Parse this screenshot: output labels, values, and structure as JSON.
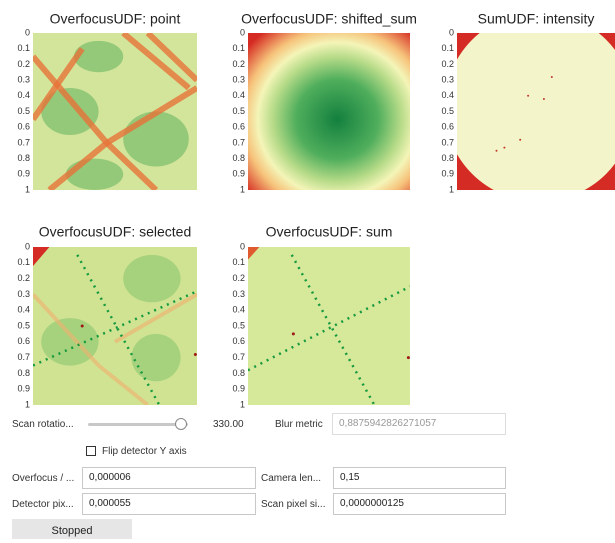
{
  "panels": [
    {
      "title": "OverfocusUDF: point",
      "yticks": [
        "0",
        "0.1",
        "0.2",
        "0.3",
        "0.4",
        "0.5",
        "0.6",
        "0.7",
        "0.8",
        "0.9",
        "1"
      ]
    },
    {
      "title": "OverfocusUDF: shifted_sum",
      "yticks": [
        "0",
        "0.1",
        "0.2",
        "0.3",
        "0.4",
        "0.5",
        "0.6",
        "0.7",
        "0.8",
        "0.9",
        "1"
      ]
    },
    {
      "title": "SumUDF: intensity",
      "yticks": [
        "0",
        "0.1",
        "0.2",
        "0.3",
        "0.4",
        "0.5",
        "0.6",
        "0.7",
        "0.8",
        "0.9",
        "1"
      ]
    },
    {
      "title": "OverfocusUDF: selected",
      "yticks": [
        "0",
        "0.1",
        "0.2",
        "0.3",
        "0.4",
        "0.5",
        "0.6",
        "0.7",
        "0.8",
        "0.9",
        "1"
      ]
    },
    {
      "title": "OverfocusUDF: sum",
      "yticks": [
        "0",
        "0.1",
        "0.2",
        "0.3",
        "0.4",
        "0.5",
        "0.6",
        "0.7",
        "0.8",
        "0.9",
        "1"
      ]
    }
  ],
  "controls": {
    "scan_rotation": {
      "label": "Scan rotatio...",
      "value": "330.00"
    },
    "blur_metric": {
      "label": "Blur metric",
      "value": "0,8875942826271057"
    },
    "flip": {
      "label": "Flip detector Y axis"
    },
    "overfocus": {
      "label": "Overfocus / ...",
      "value": "0,000006"
    },
    "camera_length": {
      "label": "Camera len...",
      "value": "0,15"
    },
    "detector_pixel": {
      "label": "Detector pix...",
      "value": "0,000055"
    },
    "scan_pixel": {
      "label": "Scan pixel si...",
      "value": "0,0000000125"
    },
    "button": "Stopped"
  }
}
